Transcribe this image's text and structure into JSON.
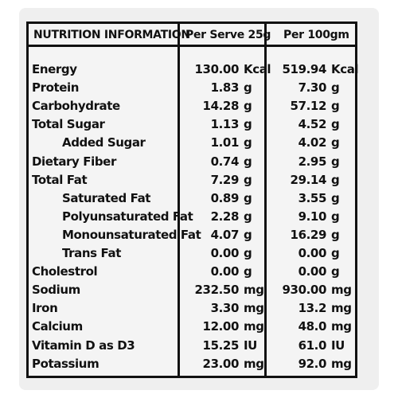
{
  "header": {
    "label": "NUTRITION INFORMATION",
    "col1": "Per Serve 25g",
    "col2": "Per 100gm"
  },
  "rows": [
    {
      "label": "Energy",
      "indent": false,
      "v1": "130.00",
      "u1": "Kcal",
      "v2": "519.94",
      "u2": "Kcal"
    },
    {
      "label": "Protein",
      "indent": false,
      "v1": "1.83",
      "u1": "g",
      "v2": "7.30",
      "u2": "g"
    },
    {
      "label": "Carbohydrate",
      "indent": false,
      "v1": "14.28",
      "u1": "g",
      "v2": "57.12",
      "u2": "g"
    },
    {
      "label": "Total Sugar",
      "indent": false,
      "v1": "1.13",
      "u1": "g",
      "v2": "4.52",
      "u2": "g"
    },
    {
      "label": "Added Sugar",
      "indent": true,
      "v1": "1.01",
      "u1": "g",
      "v2": "4.02",
      "u2": "g"
    },
    {
      "label": "Dietary Fiber",
      "indent": false,
      "v1": "0.74",
      "u1": "g",
      "v2": "2.95",
      "u2": "g"
    },
    {
      "label": "Total Fat",
      "indent": false,
      "v1": "7.29",
      "u1": "g",
      "v2": "29.14",
      "u2": "g"
    },
    {
      "label": "Saturated Fat",
      "indent": true,
      "v1": "0.89",
      "u1": "g",
      "v2": "3.55",
      "u2": "g"
    },
    {
      "label": "Polyunsaturated Fat",
      "indent": true,
      "v1": "2.28",
      "u1": "g",
      "v2": "9.10",
      "u2": "g"
    },
    {
      "label": "Monounsaturated Fat",
      "indent": true,
      "v1": "4.07",
      "u1": "g",
      "v2": "16.29",
      "u2": "g"
    },
    {
      "label": "Trans Fat",
      "indent": true,
      "v1": "0.00",
      "u1": "g",
      "v2": "0.00",
      "u2": "g"
    },
    {
      "label": "Cholestrol",
      "indent": false,
      "v1": "0.00",
      "u1": "g",
      "v2": "0.00",
      "u2": "g"
    },
    {
      "label": "Sodium",
      "indent": false,
      "v1": "232.50",
      "u1": "mg",
      "v2": "930.00",
      "u2": "mg"
    },
    {
      "label": "Iron",
      "indent": false,
      "v1": "3.30",
      "u1": "mg",
      "v2": "13.2",
      "u2": "mg"
    },
    {
      "label": "Calcium",
      "indent": false,
      "v1": "12.00",
      "u1": "mg",
      "v2": "48.0",
      "u2": "mg"
    },
    {
      "label": "Vitamin D as D3",
      "indent": false,
      "v1": "15.25",
      "u1": "IU",
      "v2": "61.0",
      "u2": "IU"
    },
    {
      "label": "Potassium",
      "indent": false,
      "v1": "23.00",
      "u1": "mg",
      "v2": "92.0",
      "u2": "mg"
    }
  ]
}
